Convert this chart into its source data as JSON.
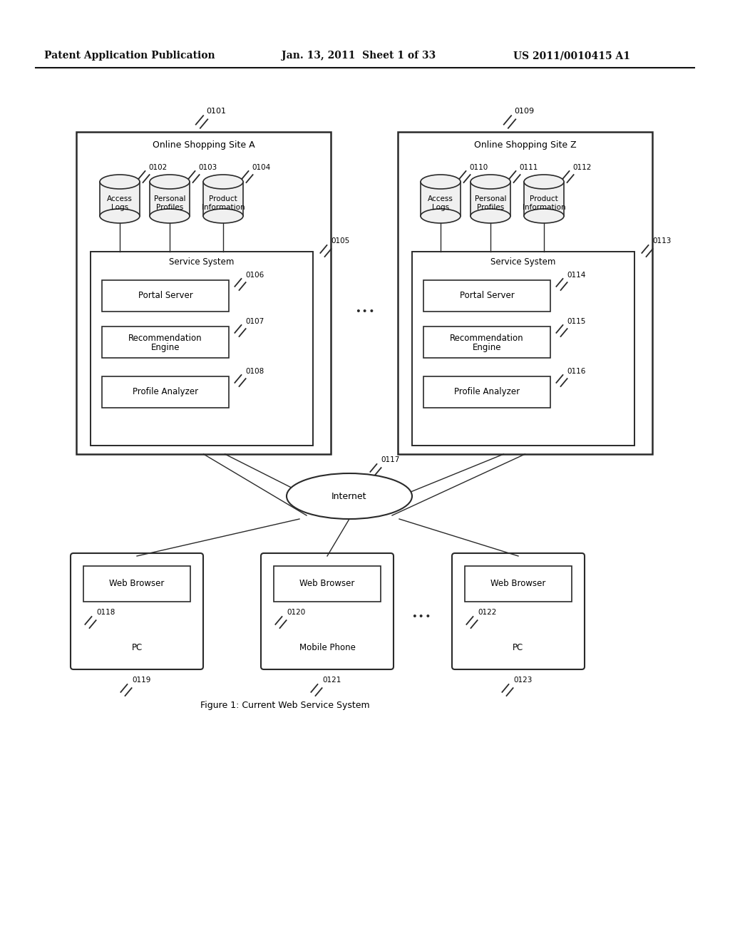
{
  "header_left": "Patent Application Publication",
  "header_center": "Jan. 13, 2011  Sheet 1 of 33",
  "header_right": "US 2011/0010415 A1",
  "caption": "Figure 1: Current Web Service System",
  "bg_color": "#ffffff",
  "line_color": "#2a2a2a",
  "site_A_label": "Online Shopping Site A",
  "site_A_ref": "0101",
  "site_A_db_refs": [
    "0102",
    "0103",
    "0104"
  ],
  "site_A_db_labels": [
    [
      "Access",
      "Logs"
    ],
    [
      "Personal",
      "Profiles"
    ],
    [
      "Product",
      "Information"
    ]
  ],
  "site_A_service_ref": "0105",
  "site_A_service_label": "Service System",
  "site_A_comp_refs": [
    "0106",
    "0107",
    "0108"
  ],
  "site_A_comp_labels": [
    "Portal Server",
    [
      "Recommendation",
      "Engine"
    ],
    "Profile Analyzer"
  ],
  "site_Z_label": "Online Shopping Site Z",
  "site_Z_ref": "0109",
  "site_Z_db_refs": [
    "0110",
    "0111",
    "0112"
  ],
  "site_Z_db_labels": [
    [
      "Access",
      "Logs"
    ],
    [
      "Personal",
      "Profiles"
    ],
    [
      "Product",
      "Information"
    ]
  ],
  "site_Z_service_ref": "0113",
  "site_Z_service_label": "Service System",
  "site_Z_comp_refs": [
    "0114",
    "0115",
    "0116"
  ],
  "site_Z_comp_labels": [
    "Portal Server",
    [
      "Recommendation",
      "Engine"
    ],
    "Profile Analyzer"
  ],
  "ellipsis_between_sites": "...",
  "internet_ref": "0117",
  "internet_label": "Internet",
  "devices": [
    {
      "ref": "0118",
      "bottom_ref": "0119",
      "browser": "Web Browser",
      "type": "PC"
    },
    {
      "ref": "0120",
      "bottom_ref": "0121",
      "browser": "Web Browser",
      "type": "Mobile Phone"
    },
    {
      "ref": "0122",
      "bottom_ref": "0123",
      "browser": "Web Browser",
      "type": "PC"
    }
  ],
  "ellipsis_between_devices": "..."
}
